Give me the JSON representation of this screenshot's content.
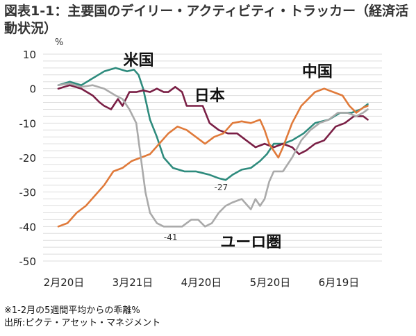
{
  "title": "図表1-1：主要国のデイリー・アクティビティ・トラッカー（経済活動状況）",
  "notes": [
    "※1-2月の5週間平均からの乖離%",
    "出所:ピクテ・アセット・マネジメント"
  ],
  "chart_data": {
    "type": "line",
    "unit": "%",
    "ylim": [
      -50,
      10
    ],
    "yticks": [
      10,
      0,
      -10,
      -20,
      -30,
      -40,
      -50
    ],
    "xlim": [
      0,
      150
    ],
    "xtick_labels": [
      {
        "x": 0,
        "label": "2月20日"
      },
      {
        "x": 30,
        "label": "3月21日"
      },
      {
        "x": 60,
        "label": "4月20日"
      },
      {
        "x": 90,
        "label": "5月20日"
      },
      {
        "x": 120,
        "label": "6月19日"
      }
    ],
    "grid": true,
    "series": [
      {
        "name": "米国",
        "color": "#2e8b7d",
        "points": [
          [
            0,
            1
          ],
          [
            5,
            2
          ],
          [
            10,
            1
          ],
          [
            15,
            3
          ],
          [
            20,
            5
          ],
          [
            25,
            6
          ],
          [
            30,
            5
          ],
          [
            33,
            5.5
          ],
          [
            35,
            4
          ],
          [
            37,
            0
          ],
          [
            40,
            -9
          ],
          [
            43,
            -14
          ],
          [
            46,
            -20
          ],
          [
            50,
            -23
          ],
          [
            55,
            -24
          ],
          [
            60,
            -24
          ],
          [
            63,
            -24.5
          ],
          [
            66,
            -25
          ],
          [
            70,
            -26
          ],
          [
            73,
            -26.5
          ],
          [
            76,
            -25
          ],
          [
            80,
            -23.5
          ],
          [
            84,
            -23
          ],
          [
            88,
            -21
          ],
          [
            91,
            -19
          ],
          [
            94,
            -16
          ],
          [
            98,
            -16
          ],
          [
            102,
            -15
          ],
          [
            107,
            -13
          ],
          [
            112,
            -10
          ],
          [
            118,
            -9
          ],
          [
            123,
            -7
          ],
          [
            128,
            -7
          ],
          [
            132,
            -6
          ],
          [
            135,
            -4.5
          ]
        ]
      },
      {
        "name": "日本",
        "color": "#7a1f45",
        "points": [
          [
            0,
            0
          ],
          [
            5,
            1
          ],
          [
            10,
            0
          ],
          [
            15,
            -2
          ],
          [
            18,
            -4
          ],
          [
            20,
            -5
          ],
          [
            23,
            -6
          ],
          [
            26,
            -3
          ],
          [
            28,
            -5
          ],
          [
            31,
            -1
          ],
          [
            34,
            -1
          ],
          [
            37,
            -0.5
          ],
          [
            40,
            -1
          ],
          [
            43,
            0
          ],
          [
            46,
            -1
          ],
          [
            48,
            -1
          ],
          [
            51,
            0.5
          ],
          [
            54,
            -1
          ],
          [
            56,
            -5
          ],
          [
            60,
            -5
          ],
          [
            63,
            -5
          ],
          [
            66,
            -10
          ],
          [
            70,
            -12
          ],
          [
            74,
            -13
          ],
          [
            78,
            -13
          ],
          [
            82,
            -15
          ],
          [
            86,
            -17
          ],
          [
            90,
            -16
          ],
          [
            94,
            -17
          ],
          [
            98,
            -16
          ],
          [
            102,
            -17
          ],
          [
            105,
            -19
          ],
          [
            108,
            -18
          ],
          [
            112,
            -16
          ],
          [
            116,
            -15
          ],
          [
            121,
            -11
          ],
          [
            125,
            -10
          ],
          [
            129,
            -8
          ],
          [
            133,
            -8
          ],
          [
            135,
            -9
          ]
        ]
      },
      {
        "name": "中国",
        "color": "#e07a3a",
        "points": [
          [
            0,
            -40
          ],
          [
            4,
            -39
          ],
          [
            8,
            -36
          ],
          [
            12,
            -34
          ],
          [
            16,
            -31
          ],
          [
            20,
            -28
          ],
          [
            24,
            -24
          ],
          [
            28,
            -23
          ],
          [
            32,
            -21
          ],
          [
            36,
            -20
          ],
          [
            40,
            -19
          ],
          [
            44,
            -16
          ],
          [
            48,
            -13
          ],
          [
            52,
            -11
          ],
          [
            56,
            -12
          ],
          [
            60,
            -14
          ],
          [
            64,
            -16
          ],
          [
            68,
            -14
          ],
          [
            72,
            -13
          ],
          [
            76,
            -10
          ],
          [
            80,
            -9.5
          ],
          [
            84,
            -10
          ],
          [
            88,
            -9
          ],
          [
            90,
            -12
          ],
          [
            92,
            -16
          ],
          [
            94,
            -18
          ],
          [
            96,
            -20
          ],
          [
            98,
            -17
          ],
          [
            102,
            -10
          ],
          [
            106,
            -5
          ],
          [
            109,
            -3
          ],
          [
            112,
            -1
          ],
          [
            116,
            0
          ],
          [
            120,
            -1
          ],
          [
            124,
            -2
          ],
          [
            127,
            -5
          ],
          [
            130,
            -7
          ],
          [
            133,
            -5.5
          ],
          [
            135,
            -5
          ]
        ]
      },
      {
        "name": "ユーロ圏",
        "color": "#aaaaaa",
        "points": [
          [
            0,
            1
          ],
          [
            5,
            1.5
          ],
          [
            10,
            0.5
          ],
          [
            15,
            1
          ],
          [
            20,
            0
          ],
          [
            25,
            -2
          ],
          [
            28,
            -3
          ],
          [
            31,
            -6
          ],
          [
            34,
            -10
          ],
          [
            36,
            -20
          ],
          [
            38,
            -30
          ],
          [
            40,
            -36
          ],
          [
            43,
            -39
          ],
          [
            46,
            -40
          ],
          [
            50,
            -40
          ],
          [
            54,
            -40
          ],
          [
            58,
            -38
          ],
          [
            61,
            -38
          ],
          [
            64,
            -40
          ],
          [
            67,
            -39
          ],
          [
            70,
            -36
          ],
          [
            73,
            -34
          ],
          [
            76,
            -33
          ],
          [
            80,
            -32
          ],
          [
            84,
            -35
          ],
          [
            86,
            -32
          ],
          [
            88,
            -34
          ],
          [
            90,
            -32
          ],
          [
            92,
            -27
          ],
          [
            94,
            -24
          ],
          [
            98,
            -24
          ],
          [
            102,
            -20
          ],
          [
            106,
            -15
          ],
          [
            110,
            -12
          ],
          [
            114,
            -10
          ],
          [
            118,
            -9
          ],
          [
            122,
            -7
          ],
          [
            126,
            -7
          ],
          [
            130,
            -8
          ],
          [
            133,
            -7
          ],
          [
            135,
            -6
          ]
        ]
      }
    ],
    "annotations": [
      {
        "text": "米国",
        "x": 35,
        "y": 6.8,
        "kind": "label"
      },
      {
        "text": "日本",
        "x": 66,
        "y": -3.5,
        "kind": "label"
      },
      {
        "text": "中国",
        "x": 113,
        "y": 3.5,
        "kind": "label"
      },
      {
        "text": "ユーロ圏",
        "x": 84,
        "y": -46,
        "kind": "label"
      },
      {
        "text": "-27",
        "x": 71,
        "y": -29.5,
        "kind": "value"
      },
      {
        "text": "-41",
        "x": 49,
        "y": -44,
        "kind": "value"
      }
    ]
  }
}
